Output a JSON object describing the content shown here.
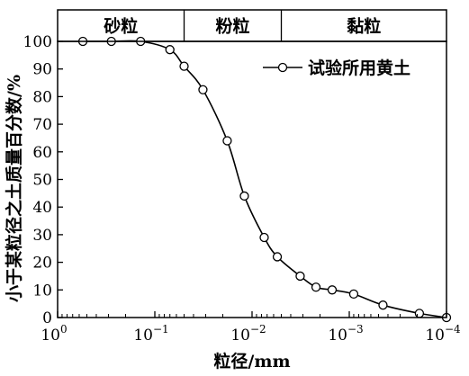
{
  "chart_data": {
    "type": "line",
    "title": "",
    "xlabel": "粒径/mm",
    "ylabel": "小于某粒径之土质量百分数/%",
    "x_scale": "log",
    "x_reversed": true,
    "xlim": [
      1,
      0.0001
    ],
    "ylim": [
      0,
      100
    ],
    "x_ticks": [
      {
        "value": 1,
        "base": "10",
        "exp": "0"
      },
      {
        "value": 0.1,
        "base": "10",
        "exp": "−1"
      },
      {
        "value": 0.01,
        "base": "10",
        "exp": "−2"
      },
      {
        "value": 0.001,
        "base": "10",
        "exp": "−3"
      },
      {
        "value": 0.0001,
        "base": "10",
        "exp": "−4"
      }
    ],
    "y_ticks": [
      "0",
      "10",
      "20",
      "30",
      "40",
      "50",
      "60",
      "70",
      "80",
      "90",
      "100"
    ],
    "grid": false,
    "legend_position": "top-right",
    "bands": [
      {
        "label": "砂粒",
        "from": 1,
        "to": 0.05
      },
      {
        "label": "粉粒",
        "from": 0.05,
        "to": 0.005
      },
      {
        "label": "黏粒",
        "from": 0.005,
        "to": 0.0001
      }
    ],
    "series": [
      {
        "name": "试验所用黄土",
        "marker": "open-circle",
        "color": "#000000",
        "x": [
          0.55,
          0.28,
          0.14,
          0.07,
          0.05,
          0.032,
          0.018,
          0.012,
          0.0075,
          0.0055,
          0.0032,
          0.0022,
          0.0015,
          0.0009,
          0.00045,
          0.00019,
          0.0001
        ],
        "y": [
          100,
          100,
          100,
          97,
          91,
          82.5,
          64,
          44,
          29,
          22,
          15,
          11,
          10,
          8.5,
          4.5,
          1.5,
          0
        ]
      }
    ]
  }
}
